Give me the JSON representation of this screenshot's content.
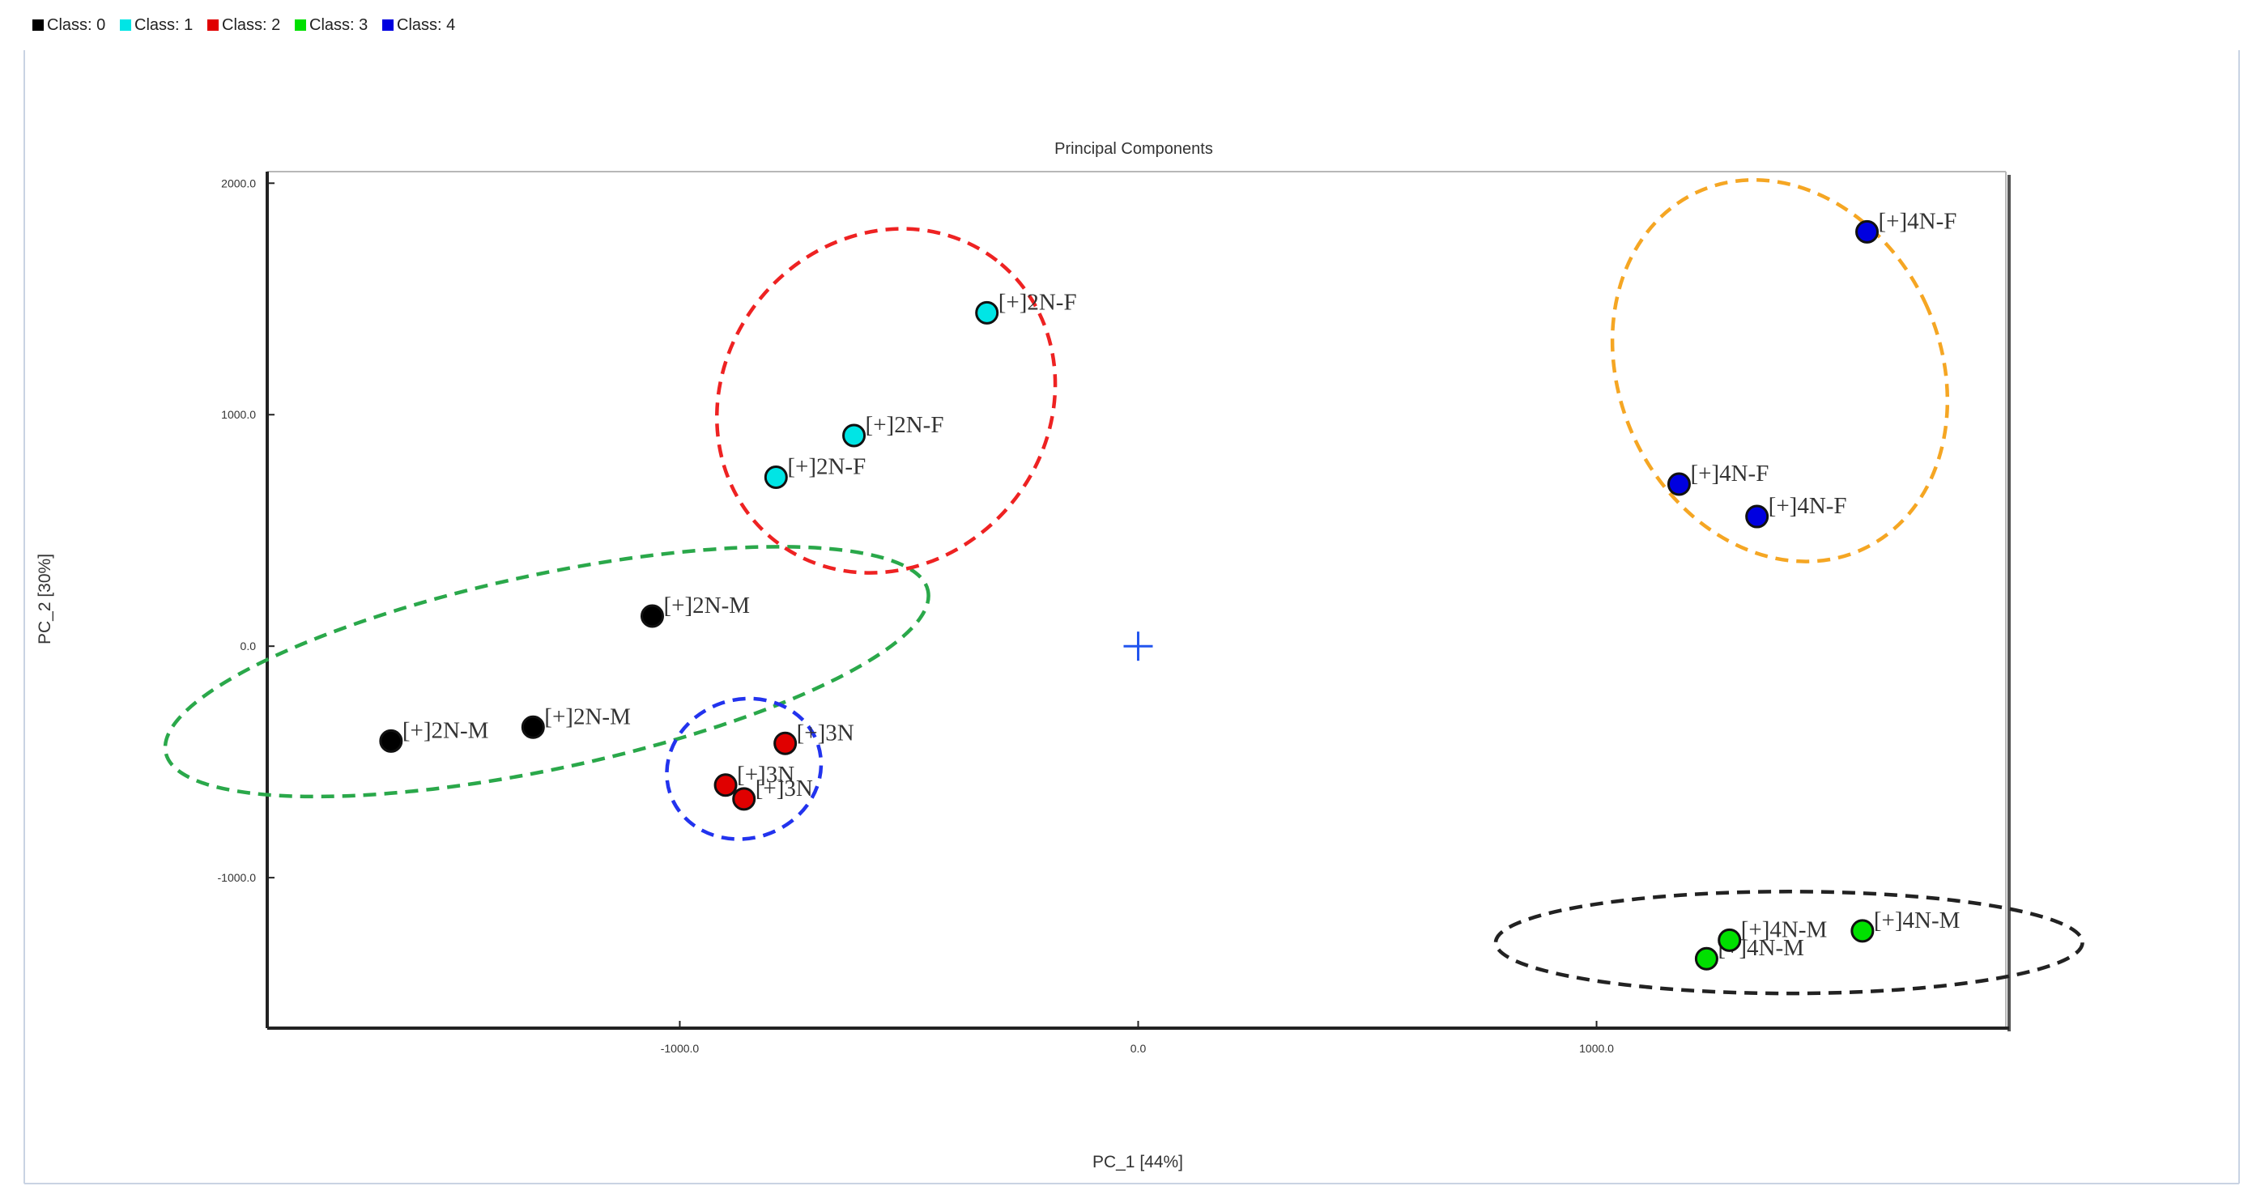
{
  "colors": {
    "class_0": "#000000",
    "class_1": "#00e5e5",
    "class_2": "#e00000",
    "class_3": "#00e000",
    "class_4": "#0000e0",
    "ring_green": "#2aa84a",
    "ring_red": "#ee2222",
    "ring_blue": "#2233ee",
    "ring_orange": "#f5a623",
    "ring_black": "#222222",
    "origin_marker": "#2255ee"
  },
  "legend": [
    {
      "label": "Class: 0",
      "color": "#000000"
    },
    {
      "label": "Class: 1",
      "color": "#00e5e5"
    },
    {
      "label": "Class: 2",
      "color": "#e00000"
    },
    {
      "label": "Class: 3",
      "color": "#00e000"
    },
    {
      "label": "Class: 4",
      "color": "#0000e0"
    }
  ],
  "chart_data": {
    "type": "scatter",
    "title": "Principal Components",
    "xlabel": "PC_1 [44%]",
    "ylabel": "PC_2 [30%]",
    "xlim": [
      -1900,
      1900
    ],
    "ylim": [
      -1650,
      2050
    ],
    "xticks": [
      {
        "value": -1000,
        "label": "-1000.0"
      },
      {
        "value": 0,
        "label": "0.0"
      },
      {
        "value": 1000,
        "label": "1000.0"
      }
    ],
    "yticks": [
      {
        "value": 2000,
        "label": "2000.0"
      },
      {
        "value": 1000,
        "label": "1000.0"
      },
      {
        "value": 0,
        "label": "0.0"
      },
      {
        "value": -1000,
        "label": "-1000.0"
      }
    ],
    "grid": false,
    "legend_position": "top-left",
    "series": [
      {
        "name": "Class: 0",
        "color": "#000000",
        "points": [
          {
            "x": -1630,
            "y": -410,
            "label": "[+]2N-M"
          },
          {
            "x": -1320,
            "y": -350,
            "label": "[+]2N-M"
          },
          {
            "x": -1060,
            "y": 130,
            "label": "[+]2N-M"
          }
        ]
      },
      {
        "name": "Class: 1",
        "color": "#00e5e5",
        "points": [
          {
            "x": -790,
            "y": 730,
            "label": "[+]2N-F"
          },
          {
            "x": -620,
            "y": 910,
            "label": "[+]2N-F"
          },
          {
            "x": -330,
            "y": 1440,
            "label": "[+]2N-F"
          }
        ]
      },
      {
        "name": "Class: 2",
        "color": "#e00000",
        "points": [
          {
            "x": -900,
            "y": -600,
            "label": "[+]3N"
          },
          {
            "x": -860,
            "y": -660,
            "label": "[+]3N"
          },
          {
            "x": -770,
            "y": -420,
            "label": "[+]3N"
          }
        ]
      },
      {
        "name": "Class: 3",
        "color": "#00e000",
        "points": [
          {
            "x": 1240,
            "y": -1350,
            "label": "[+]4N-M"
          },
          {
            "x": 1290,
            "y": -1270,
            "label": "[+]4N-M"
          },
          {
            "x": 1580,
            "y": -1230,
            "label": "[+]4N-M"
          }
        ]
      },
      {
        "name": "Class: 4",
        "color": "#0000e0",
        "points": [
          {
            "x": 1180,
            "y": 700,
            "label": "[+]4N-F"
          },
          {
            "x": 1350,
            "y": 560,
            "label": "[+]4N-F"
          },
          {
            "x": 1590,
            "y": 1790,
            "label": "[+]4N-F"
          }
        ]
      }
    ],
    "origin_marker": {
      "x": 0,
      "y": 0,
      "symbol": "+"
    },
    "groupings": [
      {
        "color": "#2aa84a",
        "style": "dashed",
        "center": [
          -1290,
          -110
        ],
        "radius": [
          850,
          420
        ],
        "rotate_deg": -12
      },
      {
        "color": "#ee2222",
        "style": "dashed",
        "center": [
          -550,
          1060
        ],
        "radius": [
          390,
          700
        ],
        "rotate_deg": -50
      },
      {
        "color": "#2233ee",
        "style": "dashed",
        "center": [
          -860,
          -530
        ],
        "radius": [
          170,
          300
        ],
        "rotate_deg": -18
      },
      {
        "color": "#f5a623",
        "style": "dashed",
        "center": [
          1400,
          1190
        ],
        "radius": [
          350,
          850
        ],
        "rotate_deg": -25
      },
      {
        "color": "#222222",
        "style": "dashed",
        "center": [
          1420,
          -1280
        ],
        "radius": [
          640,
          220
        ],
        "rotate_deg": 0
      }
    ]
  }
}
